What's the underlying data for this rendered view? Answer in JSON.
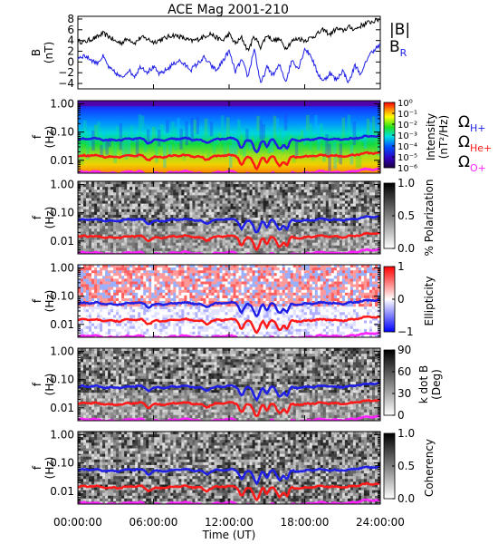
{
  "chart_data": {
    "title": "ACE Mag 2001-210",
    "type": "line+heatmap",
    "time_axis": {
      "label": "Time (UT)",
      "range_hours": [
        0,
        24
      ],
      "tick_labels": [
        "00:00:00",
        "06:00:00",
        "12:00:00",
        "18:00:00",
        "24:00:00"
      ],
      "tick_hours": [
        0,
        6,
        12,
        18,
        24
      ]
    },
    "colors": {
      "black": "#000000",
      "blue": "#1f1fe6",
      "red": "#ff1a1a",
      "magenta": "#ff22ff"
    },
    "field_panel": {
      "ylabel": "B\n(nT)",
      "ylim": [
        -5,
        8.5
      ],
      "ticks": [
        -4,
        -2,
        0,
        2,
        4,
        6,
        8
      ],
      "legend": [
        {
          "name": "|B|",
          "color": "#000000"
        },
        {
          "name": "B",
          "sub": "R",
          "color": "#1f1fe6"
        }
      ],
      "series": [
        {
          "name": "|B|",
          "x": [
            0,
            0.5,
            1,
            1.5,
            2,
            2.5,
            3,
            3.5,
            4,
            4.5,
            5,
            5.5,
            6,
            6.5,
            7,
            7.5,
            8,
            8.5,
            9,
            9.5,
            10,
            10.5,
            11,
            11.5,
            12,
            12.5,
            13,
            13.5,
            14,
            14.5,
            15,
            15.5,
            16,
            16.5,
            17,
            17.5,
            18,
            18.5,
            19,
            19.5,
            20,
            20.5,
            21,
            21.5,
            22,
            22.5,
            23,
            23.5,
            24
          ],
          "y": [
            3.9,
            3.7,
            4.2,
            4.6,
            5.3,
            4.7,
            3.8,
            3.6,
            4.4,
            3.5,
            4.6,
            4.3,
            3.7,
            4.1,
            4.5,
            5.0,
            4.8,
            4.3,
            3.9,
            4.2,
            4.7,
            5.3,
            4.5,
            4.0,
            5.2,
            3.4,
            4.5,
            2.1,
            4.8,
            2.8,
            5.0,
            4.0,
            4.2,
            2.6,
            3.9,
            4.4,
            4.0,
            4.5,
            5.2,
            6.0,
            5.1,
            6.2,
            5.8,
            6.5,
            6.1,
            6.8,
            7.3,
            7.6,
            8.0
          ]
        },
        {
          "name": "BR",
          "x": [
            0,
            0.5,
            1,
            1.5,
            2,
            2.5,
            3,
            3.5,
            4,
            4.5,
            5,
            5.5,
            6,
            6.5,
            7,
            7.5,
            8,
            8.5,
            9,
            9.5,
            10,
            10.5,
            11,
            11.5,
            12,
            12.5,
            13,
            13.5,
            14,
            14.5,
            15,
            15.5,
            16,
            16.5,
            17,
            17.5,
            18,
            18.5,
            19,
            19.5,
            20,
            20.5,
            21,
            21.5,
            22,
            22.5,
            23,
            23.5,
            24
          ],
          "y": [
            0.8,
            1.2,
            0.5,
            -0.2,
            1.0,
            -1.2,
            -2.1,
            -3.0,
            -1.5,
            -2.6,
            -0.8,
            -1.8,
            -1.0,
            -2.3,
            -1.5,
            -0.5,
            0.3,
            -0.6,
            -1.4,
            -0.3,
            0.8,
            -0.5,
            -1.6,
            0.2,
            2.0,
            -1.8,
            0.4,
            -2.8,
            2.6,
            -4.2,
            -1.0,
            -2.4,
            -0.6,
            -3.6,
            0.4,
            -1.2,
            2.5,
            1.2,
            -2.0,
            -3.6,
            -2.0,
            -3.4,
            -1.6,
            -3.8,
            -0.6,
            -2.4,
            0.9,
            2.3,
            3.1
          ]
        }
      ]
    },
    "spectrogram_panels": [
      {
        "name": "intensity",
        "ylabel": "f\n(Hz)",
        "colorbar_label": "Intensity\n(nT²/Hz)",
        "colorbar_ticks": [
          "10⁰",
          "10⁻¹",
          "10⁻²",
          "10⁻³",
          "10⁻⁴",
          "10⁻⁵",
          "10⁻⁶"
        ],
        "colorscale": "rainbow"
      },
      {
        "name": "polarization",
        "ylabel": "f\n(Hz)",
        "colorbar_label": "% Polarization",
        "colorbar_ticks": [
          "1.0",
          "0.5",
          "0.0"
        ],
        "colorscale": "gray"
      },
      {
        "name": "ellipticity",
        "ylabel": "f\n(Hz)",
        "colorbar_label": "Ellipticity",
        "colorbar_ticks": [
          "1",
          "0",
          "−1"
        ],
        "colorscale": "bluewhitered"
      },
      {
        "name": "kdotb",
        "ylabel": "f\n(Hz)",
        "colorbar_label": "k dot B\n(Deg)",
        "colorbar_ticks": [
          "90",
          "60",
          "30",
          "0"
        ],
        "colorscale": "gray"
      },
      {
        "name": "coherency",
        "ylabel": "f\n(Hz)",
        "colorbar_label": "Coherency",
        "colorbar_ticks": [
          "1.0",
          "0.5",
          "0.0"
        ],
        "colorscale": "gray"
      }
    ],
    "frequency_axis": {
      "scale": "log",
      "range_hz": [
        0.0035,
        1.3
      ],
      "ticks": [
        1.0,
        0.1,
        0.01
      ],
      "tick_labels": [
        "1.00",
        "0.10",
        "0.01"
      ]
    },
    "gyrofrequency_legend": [
      {
        "name": "Ω",
        "sub": "H+",
        "color": "#1f1fe6"
      },
      {
        "name": "Ω",
        "sub": "He+",
        "color": "#ff1a1a"
      },
      {
        "name": "Ω",
        "sub": "O+",
        "color": "#ff22ff"
      }
    ]
  }
}
